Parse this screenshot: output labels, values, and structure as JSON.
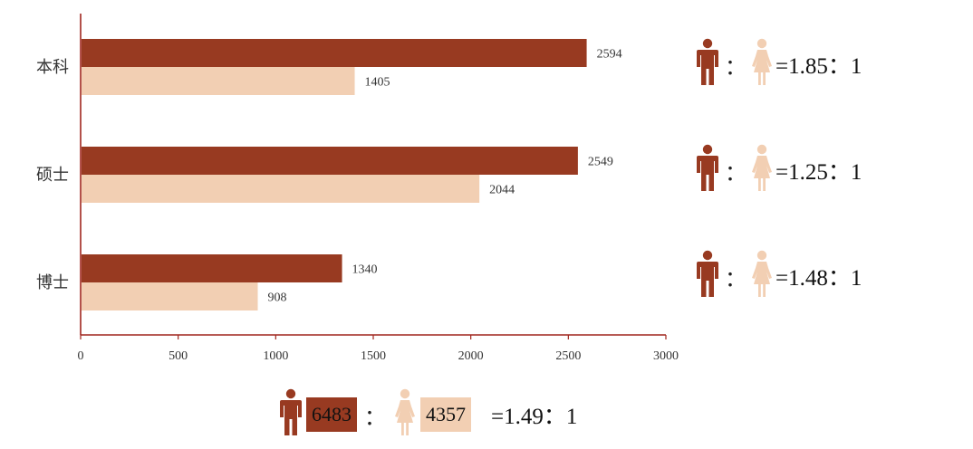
{
  "colors": {
    "male": "#983a21",
    "female": "#f2cfb3",
    "axis": "#a0261e"
  },
  "chart_data": {
    "type": "bar",
    "orientation": "horizontal",
    "categories": [
      "本科",
      "硕士",
      "博士"
    ],
    "series": [
      {
        "values": [
          2594,
          2549,
          1340
        ]
      },
      {
        "values": [
          1405,
          2044,
          908
        ]
      }
    ],
    "xlim": [
      0,
      3000
    ],
    "xticks": [
      "0",
      "500",
      "1000",
      "1500",
      "2000",
      "2500",
      "3000"
    ],
    "grid": false
  },
  "ratios": [
    {
      "colon": "：",
      "text": "=1.85：1"
    },
    {
      "colon": "：",
      "text": "=1.25：1"
    },
    {
      "colon": "：",
      "text": "=1.48：1"
    }
  ],
  "summary": {
    "male_total": "6483",
    "female_total": "4357",
    "colon": "：",
    "text": "=1.49：1"
  },
  "icons": {
    "male": "man-icon",
    "female": "woman-icon"
  }
}
